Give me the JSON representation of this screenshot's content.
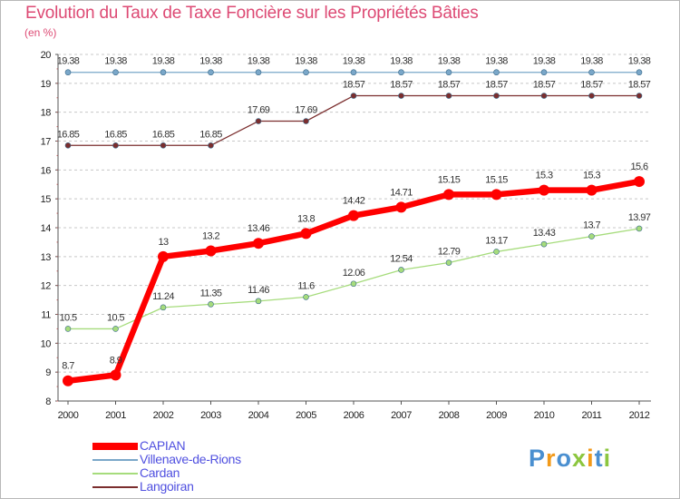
{
  "chart_data": {
    "type": "line",
    "title": "Evolution du Taux de Taxe Foncière sur les Propriétés Bâties",
    "ylabel": "(en %)",
    "xlabel": "",
    "categories": [
      "2000",
      "2001",
      "2002",
      "2003",
      "2004",
      "2005",
      "2006",
      "2007",
      "2008",
      "2009",
      "2010",
      "2011",
      "2012"
    ],
    "ylim": [
      8,
      20
    ],
    "yticks": [
      8,
      9,
      10,
      11,
      12,
      13,
      14,
      15,
      16,
      17,
      18,
      19,
      20
    ],
    "grid": "horizontal dashed",
    "legend_position": "bottom-left",
    "series": [
      {
        "name": "CAPIAN",
        "color": "#ff0000",
        "values": [
          8.7,
          8.9,
          13,
          13.2,
          13.46,
          13.8,
          14.42,
          14.71,
          15.15,
          15.15,
          15.3,
          15.3,
          15.6
        ],
        "labels": [
          "8.7",
          "8.9",
          "13",
          "13.2",
          "13.46",
          "13.8",
          "14.42",
          "14.71",
          "15.15",
          "15.15",
          "15.3",
          "15.3",
          "15.6"
        ]
      },
      {
        "name": "Villenave-de-Rions",
        "color": "#7aa7c9",
        "values": [
          19.38,
          19.38,
          19.38,
          19.38,
          19.38,
          19.38,
          19.38,
          19.38,
          19.38,
          19.38,
          19.38,
          19.38,
          19.38
        ],
        "labels": [
          "19.38",
          "19.38",
          "19.38",
          "19.38",
          "19.38",
          "19.38",
          "19.38",
          "19.38",
          "19.38",
          "19.38",
          "19.38",
          "19.38",
          "19.38"
        ]
      },
      {
        "name": "Cardan",
        "color": "#a6dc7c",
        "values": [
          10.5,
          10.5,
          11.24,
          11.35,
          11.46,
          11.6,
          12.06,
          12.54,
          12.79,
          13.17,
          13.43,
          13.7,
          13.97
        ],
        "labels": [
          "10.5",
          "10.5",
          "11.24",
          "11.35",
          "11.46",
          "11.6",
          "12.06",
          "12.54",
          "12.79",
          "13.17",
          "13.43",
          "13.7",
          "13.97"
        ]
      },
      {
        "name": "Langoiran",
        "color": "#7b2e2e",
        "values": [
          16.85,
          16.85,
          16.85,
          16.85,
          17.69,
          17.69,
          18.57,
          18.57,
          18.57,
          18.57,
          18.57,
          18.57,
          18.57
        ],
        "labels": [
          "16.85",
          "16.85",
          "16.85",
          "16.85",
          "17.69",
          "17.69",
          "18.57",
          "18.57",
          "18.57",
          "18.57",
          "18.57",
          "18.57",
          "18.57"
        ]
      }
    ]
  },
  "logo": {
    "text": "Proxiti",
    "letters": [
      "P",
      "r",
      "o",
      "x",
      "i",
      "t",
      "i"
    ],
    "colors": [
      "#4a8fd0",
      "#f29a1a",
      "#4a8fd0",
      "#8cc63f",
      "#f29a1a",
      "#4a8fd0",
      "#8cc63f"
    ]
  }
}
